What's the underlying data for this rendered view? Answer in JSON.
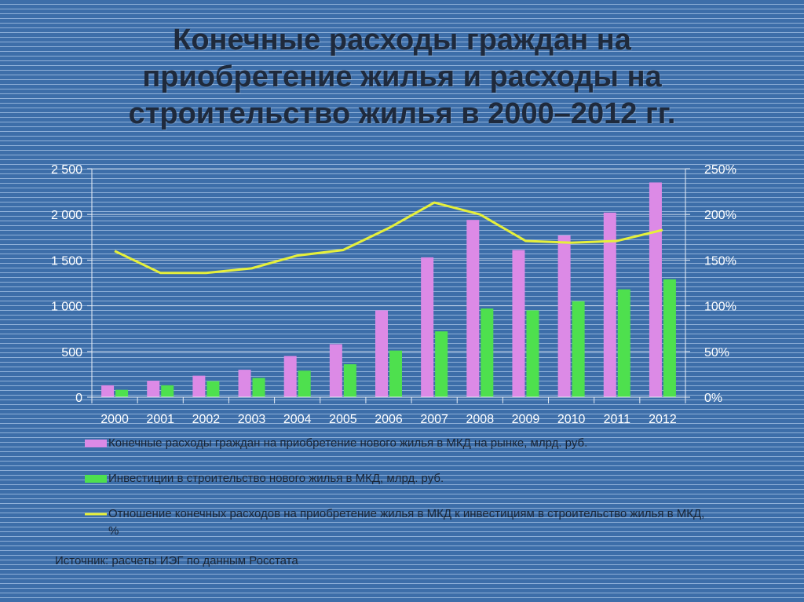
{
  "title_lines": [
    "Конечные расходы граждан на",
    "приобретение жилья и  расходы на",
    "строительство жилья в 2000–2012 гг."
  ],
  "source": "Источник: расчеты ИЭГ по данным Росстата",
  "colors": {
    "pink": "#dc8ae6",
    "green": "#4ee04e",
    "yellow": "#e6f03a",
    "axis": "#e8eef6"
  },
  "chart_data": {
    "type": "bar",
    "categories": [
      "2000",
      "2001",
      "2002",
      "2003",
      "2004",
      "2005",
      "2006",
      "2007",
      "2008",
      "2009",
      "2010",
      "2011",
      "2012"
    ],
    "series": [
      {
        "name": "Конечные расходы граждан на приобретение нового жилья в МКД на рынке, млрд. руб.",
        "type": "bar",
        "axis": "left",
        "values": [
          130,
          180,
          235,
          300,
          450,
          580,
          950,
          1530,
          1940,
          1610,
          1770,
          2020,
          2350
        ]
      },
      {
        "name": "Инвестиции в строительство нового жилья в МКД, млрд. руб.",
        "type": "bar",
        "axis": "left",
        "values": [
          80,
          130,
          175,
          210,
          290,
          360,
          510,
          720,
          970,
          950,
          1050,
          1180,
          1290
        ]
      },
      {
        "name": "Отношение конечных расходов на приобретение жилья в МКД к инвестициям в строительство жилья в МКД, %",
        "type": "line",
        "axis": "right",
        "values": [
          160,
          136,
          136,
          141,
          155,
          161,
          185,
          213,
          200,
          171,
          169,
          171,
          183
        ]
      }
    ],
    "y_left": {
      "lim": [
        0,
        2500
      ],
      "ticks": [
        0,
        500,
        1000,
        1500,
        2000,
        2500
      ],
      "tick_labels": [
        "0",
        "500",
        "1 000",
        "1 500",
        "2 000",
        "2 500"
      ]
    },
    "y_right": {
      "lim": [
        0,
        250
      ],
      "ticks": [
        0,
        50,
        100,
        150,
        200,
        250
      ],
      "tick_labels": [
        "0%",
        "50%",
        "100%",
        "150%",
        "200%",
        "250%"
      ]
    },
    "grid": true,
    "legend_position": "bottom"
  }
}
